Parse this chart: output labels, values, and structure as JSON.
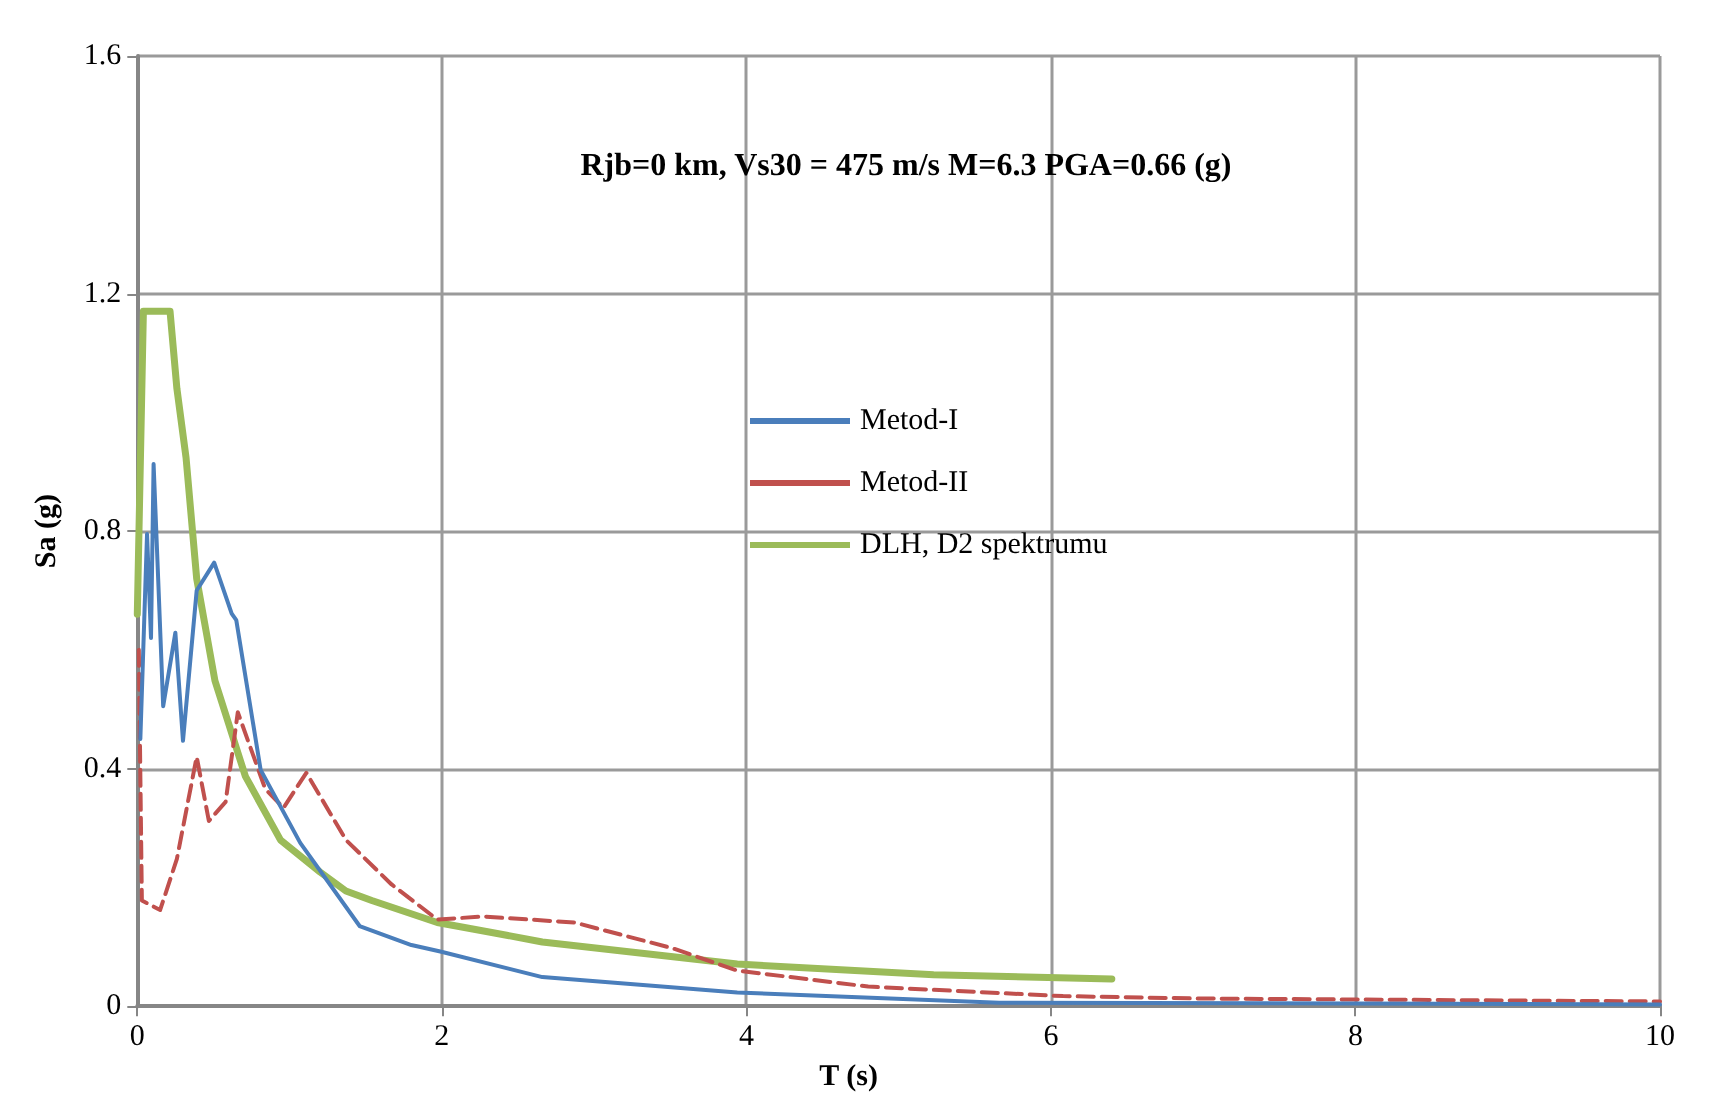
{
  "chart_data": {
    "type": "line",
    "title": "Rjb=0 km, Vs30 = 475 m/s M=6.3 PGA=0.66 (g)",
    "xlabel": "T (s)",
    "ylabel": "Sa (g)",
    "xlim": [
      0,
      10
    ],
    "xticks": [
      0,
      2,
      4,
      6,
      8,
      10
    ],
    "ylim": [
      0,
      1.6
    ],
    "yticks": [
      0,
      0.4,
      0.8,
      1.2,
      1.6
    ],
    "grid": true,
    "legend": "right",
    "marker": "none",
    "series": [
      {
        "name": "Metod-I",
        "color": "#4a7ebb",
        "line_style": "solid",
        "x": [
          0.02,
          0.064,
          0.09,
          0.107,
          0.137,
          0.17,
          0.25,
          0.3,
          0.39,
          0.505,
          0.62,
          0.65,
          0.81,
          1.07,
          1.46,
          1.8,
          1.99,
          2.66,
          3.94,
          5.66,
          10
        ],
        "values": [
          0.45,
          0.795,
          0.62,
          0.913,
          0.72,
          0.505,
          0.629,
          0.447,
          0.7,
          0.747,
          0.661,
          0.65,
          0.398,
          0.275,
          0.135,
          0.103,
          0.092,
          0.049,
          0.023,
          0.006,
          0.003
        ]
      },
      {
        "name": "Metod-II",
        "color": "#c0504d",
        "line_style": "dashed",
        "x": [
          0.01,
          0.03,
          0.15,
          0.26,
          0.39,
          0.47,
          0.58,
          0.66,
          0.84,
          0.96,
          1.11,
          1.37,
          1.67,
          1.97,
          2.27,
          2.87,
          3.51,
          3.94,
          4.8,
          6.08,
          6.95,
          10
        ],
        "values": [
          0.6,
          0.178,
          0.162,
          0.248,
          0.42,
          0.312,
          0.344,
          0.495,
          0.366,
          0.334,
          0.393,
          0.28,
          0.205,
          0.146,
          0.151,
          0.141,
          0.098,
          0.06,
          0.033,
          0.017,
          0.013,
          0.008
        ]
      },
      {
        "name": "DLH, D2 spektrumu",
        "color": "#9bbb59",
        "line_style": "solid",
        "x": [
          0,
          0.04,
          0.215,
          0.26,
          0.32,
          0.39,
          0.51,
          0.71,
          0.94,
          1.2,
          1.37,
          1.54,
          1.97,
          2.31,
          2.66,
          3.94,
          5.23,
          6.4
        ],
        "values": [
          0.66,
          1.17,
          1.17,
          1.04,
          0.924,
          0.72,
          0.548,
          0.387,
          0.28,
          0.226,
          0.194,
          0.178,
          0.141,
          0.125,
          0.108,
          0.071,
          0.053,
          0.046
        ]
      }
    ]
  }
}
